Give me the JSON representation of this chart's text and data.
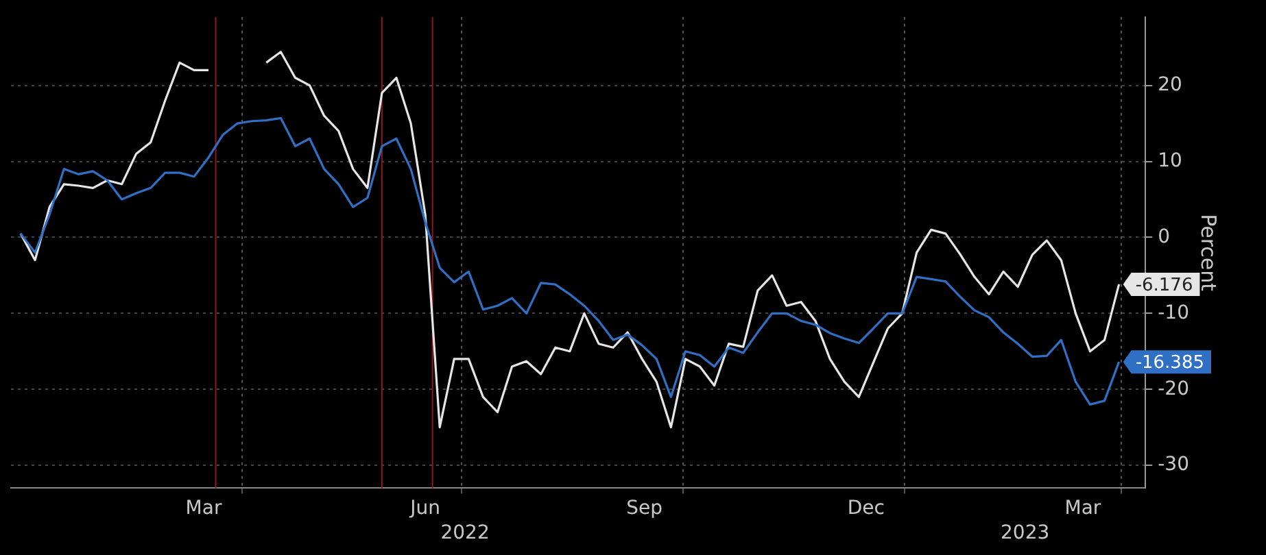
{
  "chart_data": {
    "type": "line",
    "ylabel": "Percent",
    "x": [
      "2021-12-30",
      "2022-01-05",
      "2022-01-11",
      "2022-01-17",
      "2022-01-23",
      "2022-01-29",
      "2022-02-04",
      "2022-02-10",
      "2022-02-16",
      "2022-02-22",
      "2022-02-28",
      "2022-03-06",
      "2022-03-12",
      "2022-03-18",
      "2022-03-24",
      "2022-03-30",
      "2022-04-05",
      "2022-04-11",
      "2022-04-17",
      "2022-04-23",
      "2022-04-29",
      "2022-05-05",
      "2022-05-11",
      "2022-05-17",
      "2022-05-23",
      "2022-05-29",
      "2022-06-04",
      "2022-06-10",
      "2022-06-16",
      "2022-06-22",
      "2022-06-28",
      "2022-07-04",
      "2022-07-10",
      "2022-07-16",
      "2022-07-22",
      "2022-07-28",
      "2022-08-03",
      "2022-08-09",
      "2022-08-15",
      "2022-08-21",
      "2022-08-27",
      "2022-09-02",
      "2022-09-08",
      "2022-09-14",
      "2022-09-20",
      "2022-09-26",
      "2022-10-02",
      "2022-10-08",
      "2022-10-14",
      "2022-10-20",
      "2022-10-26",
      "2022-11-01",
      "2022-11-07",
      "2022-11-13",
      "2022-11-19",
      "2022-11-25",
      "2022-12-01",
      "2022-12-07",
      "2022-12-13",
      "2022-12-19",
      "2022-12-25",
      "2022-12-31",
      "2023-01-06",
      "2023-01-12",
      "2023-01-18",
      "2023-01-24",
      "2023-01-30",
      "2023-02-05",
      "2023-02-11",
      "2023-02-17",
      "2023-02-23",
      "2023-03-01",
      "2023-03-07",
      "2023-03-13",
      "2023-03-19",
      "2023-03-25",
      "2023-03-31"
    ],
    "series": [
      {
        "color": "#e6e6e6",
        "values": [
          0.5,
          -3,
          4,
          7,
          6.8,
          6.5,
          7.5,
          7,
          11,
          12.5,
          18,
          23,
          22,
          22,
          null,
          null,
          null,
          23,
          24.4,
          21,
          20,
          16,
          14,
          9,
          6.5,
          19,
          21,
          15,
          3,
          -25,
          -16,
          -16,
          -21,
          -23,
          -17,
          -16.3,
          -18,
          -14.5,
          -15,
          -10,
          -14,
          -14.5,
          -12.5,
          -16,
          -19,
          -25,
          -16,
          -17,
          -19.5,
          -14,
          -14.4,
          -7,
          -5,
          -9,
          -8.5,
          -11,
          -16,
          -19,
          -21,
          -16.5,
          -12,
          -10,
          -2,
          1,
          0.5,
          -2.2,
          -5.2,
          -7.5,
          -4.5,
          -6.5,
          -2.3,
          -0.4,
          -3,
          -10,
          -15,
          -13.5,
          -6.176
        ],
        "value_labels": [
          null,
          null,
          null,
          null,
          null,
          null,
          null,
          null,
          null,
          null,
          null,
          null,
          null,
          null,
          null,
          null,
          null,
          null,
          null,
          null,
          null,
          null,
          null,
          null,
          null,
          null,
          null,
          null,
          null,
          null,
          null,
          null,
          null,
          null,
          null,
          null,
          null,
          null,
          null,
          null,
          null,
          null,
          null,
          null,
          null,
          null,
          null,
          null,
          null,
          null,
          null,
          null,
          null,
          null,
          null,
          null,
          null,
          null,
          null,
          null,
          null,
          null,
          null,
          null,
          null,
          null,
          null,
          null,
          null,
          null,
          null,
          null,
          null,
          null,
          null,
          null,
          "-6.176"
        ]
      },
      {
        "color": "#2f6fc4",
        "values": [
          0.5,
          -2,
          3,
          9,
          8.3,
          8.7,
          7.5,
          5,
          5.8,
          6.5,
          8.5,
          8.5,
          8,
          10.5,
          13.5,
          15,
          15.3,
          15.4,
          15.7,
          12,
          13,
          9,
          7,
          4,
          5.2,
          12,
          13,
          9,
          2,
          -4,
          -5.9,
          -4.5,
          -9.5,
          -9,
          -8,
          -10,
          -6,
          -6.2,
          -7.5,
          -9,
          -11,
          -13.5,
          -12.8,
          -14.2,
          -16,
          -21,
          -15,
          -15.5,
          -17,
          -14.5,
          -15.2,
          -12.5,
          -10,
          -10,
          -11,
          -11.5,
          -12.6,
          -13.3,
          -13.9,
          -12,
          -10,
          -10,
          -5.2,
          -5.5,
          -5.8,
          -7.8,
          -9.6,
          -10.5,
          -12.5,
          -14,
          -15.7,
          -15.6,
          -13.5,
          -19,
          -22,
          -21.5,
          -16.385
        ],
        "value_labels": [
          null,
          null,
          null,
          null,
          null,
          null,
          null,
          null,
          null,
          null,
          null,
          null,
          null,
          null,
          null,
          null,
          null,
          null,
          null,
          null,
          null,
          null,
          null,
          null,
          null,
          null,
          null,
          null,
          null,
          null,
          null,
          null,
          null,
          null,
          null,
          null,
          null,
          null,
          null,
          null,
          null,
          null,
          null,
          null,
          null,
          null,
          null,
          null,
          null,
          null,
          null,
          null,
          null,
          null,
          null,
          null,
          null,
          null,
          null,
          null,
          null,
          null,
          null,
          null,
          null,
          null,
          null,
          null,
          null,
          null,
          null,
          null,
          null,
          null,
          null,
          null,
          "-16.385"
        ]
      }
    ],
    "xlim": [
      "2021-12-26",
      "2023-04-11"
    ],
    "xticks": [
      {
        "value": "2022-03-16",
        "label": "Mar"
      },
      {
        "value": "2022-04-01",
        "label": null
      },
      {
        "value": "2022-06-16",
        "label": "Jun"
      },
      {
        "value": "2022-07-01",
        "label": null
      },
      {
        "value": "2022-09-15",
        "label": "Sep"
      },
      {
        "value": "2022-10-01",
        "label": null
      },
      {
        "value": "2022-12-16",
        "label": "Dec"
      },
      {
        "value": "2023-01-01",
        "label": null
      },
      {
        "value": "2023-03-16",
        "label": "Mar"
      },
      {
        "value": "2023-04-01",
        "label": null
      }
    ],
    "ylim": [
      -33,
      29
    ],
    "yticks": [
      -30,
      -20,
      -10,
      0,
      10,
      20
    ],
    "grid": true,
    "ref_lines": [
      {
        "axis": "x",
        "value": "2022-03-21",
        "color": "#8b1a1a"
      },
      {
        "axis": "x",
        "value": "2022-05-29",
        "color": "#8b1a1a"
      },
      {
        "axis": "x",
        "value": "2022-06-19",
        "color": "#8b1a1a"
      }
    ],
    "annotations": [
      "2022",
      "2023"
    ]
  }
}
